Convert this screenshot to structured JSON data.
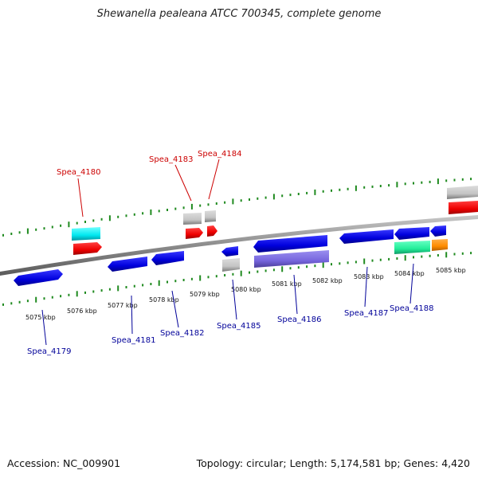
{
  "title": "Shewanella pealeana ATCC 700345, complete genome",
  "footer": {
    "accession": "Accession: NC_009901",
    "summary": "Topology: circular; Length: 5,174,581 bp; Genes: 4,420"
  },
  "colors": {
    "backbone": "#8c8c8c",
    "tick": "#1f8a1f",
    "top_label": "#cc0000",
    "bottom_label": "#000099"
  },
  "scale_labels": [
    "5075 kbp",
    "5076 kbp",
    "5077 kbp",
    "5078 kbp",
    "5079 kbp",
    "5080 kbp",
    "5081 kbp",
    "5082 kbp",
    "5083 kbp",
    "5084 kbp",
    "5085 kbp"
  ],
  "gene_labels_top": [
    "Spea_4180",
    "Spea_4183",
    "Spea_4184"
  ],
  "gene_labels_bottom": [
    "Spea_4179",
    "Spea_4181",
    "Spea_4182",
    "Spea_4185",
    "Spea_4186",
    "Spea_4187",
    "Spea_4188"
  ]
}
